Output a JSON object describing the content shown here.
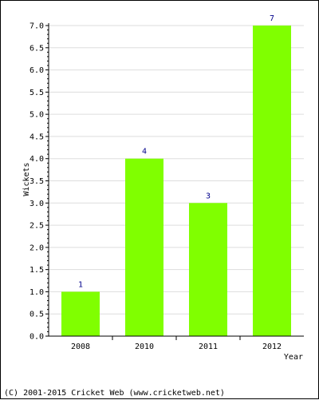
{
  "chart_data": {
    "type": "bar",
    "categories": [
      "2008",
      "2010",
      "2011",
      "2012"
    ],
    "values": [
      1,
      4,
      3,
      7
    ],
    "data_labels": [
      "1",
      "4",
      "3",
      "7"
    ],
    "title": "",
    "xlabel": "Year",
    "ylabel": "Wickets",
    "ylim": [
      0,
      7.0
    ],
    "yticks": [
      "0.0",
      "0.5",
      "1.0",
      "1.5",
      "2.0",
      "2.5",
      "3.0",
      "3.5",
      "4.0",
      "4.5",
      "5.0",
      "5.5",
      "6.0",
      "6.5",
      "7.0"
    ],
    "grid": true,
    "legend": "none",
    "bar_color": "#80ff00",
    "grid_color": "#dddddd",
    "label_color": "#00008b"
  },
  "footer": {
    "copyright": "(C) 2001-2015 Cricket Web (www.cricketweb.net)"
  }
}
